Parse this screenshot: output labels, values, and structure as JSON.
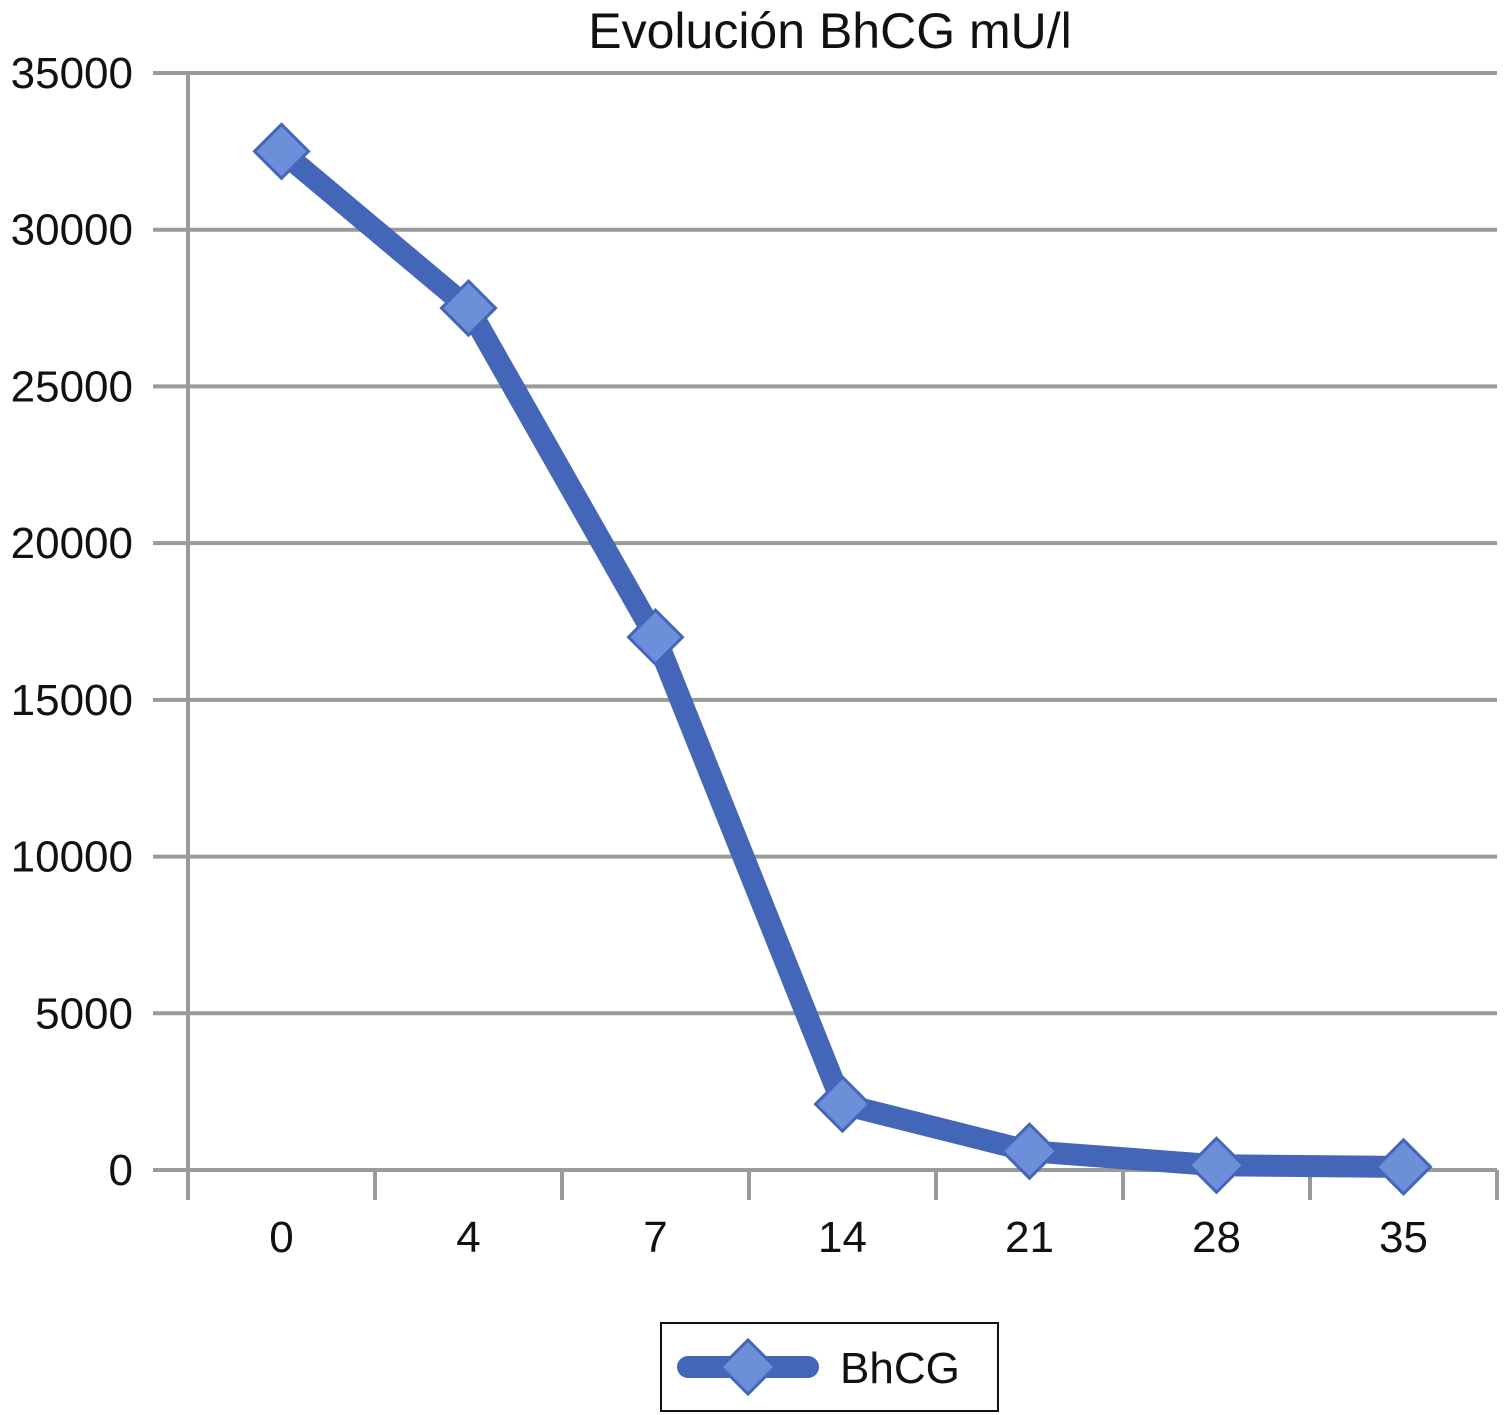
{
  "chart_data": {
    "type": "line",
    "title": "Evolución BhCG mU/l",
    "xlabel": "",
    "ylabel": "",
    "categories": [
      "0",
      "4",
      "7",
      "14",
      "21",
      "28",
      "35"
    ],
    "series": [
      {
        "name": "BhCG",
        "values": [
          32500,
          27500,
          17000,
          2100,
          600,
          150,
          100
        ]
      }
    ],
    "ylim": [
      0,
      35000
    ],
    "yticks": [
      "0",
      "5000",
      "10000",
      "15000",
      "20000",
      "25000",
      "30000",
      "35000"
    ],
    "grid": true,
    "legend": "bottom",
    "colors": {
      "line": "#4466b8",
      "marker": "#6d8fd9",
      "grid": "#9a9a9a"
    }
  }
}
